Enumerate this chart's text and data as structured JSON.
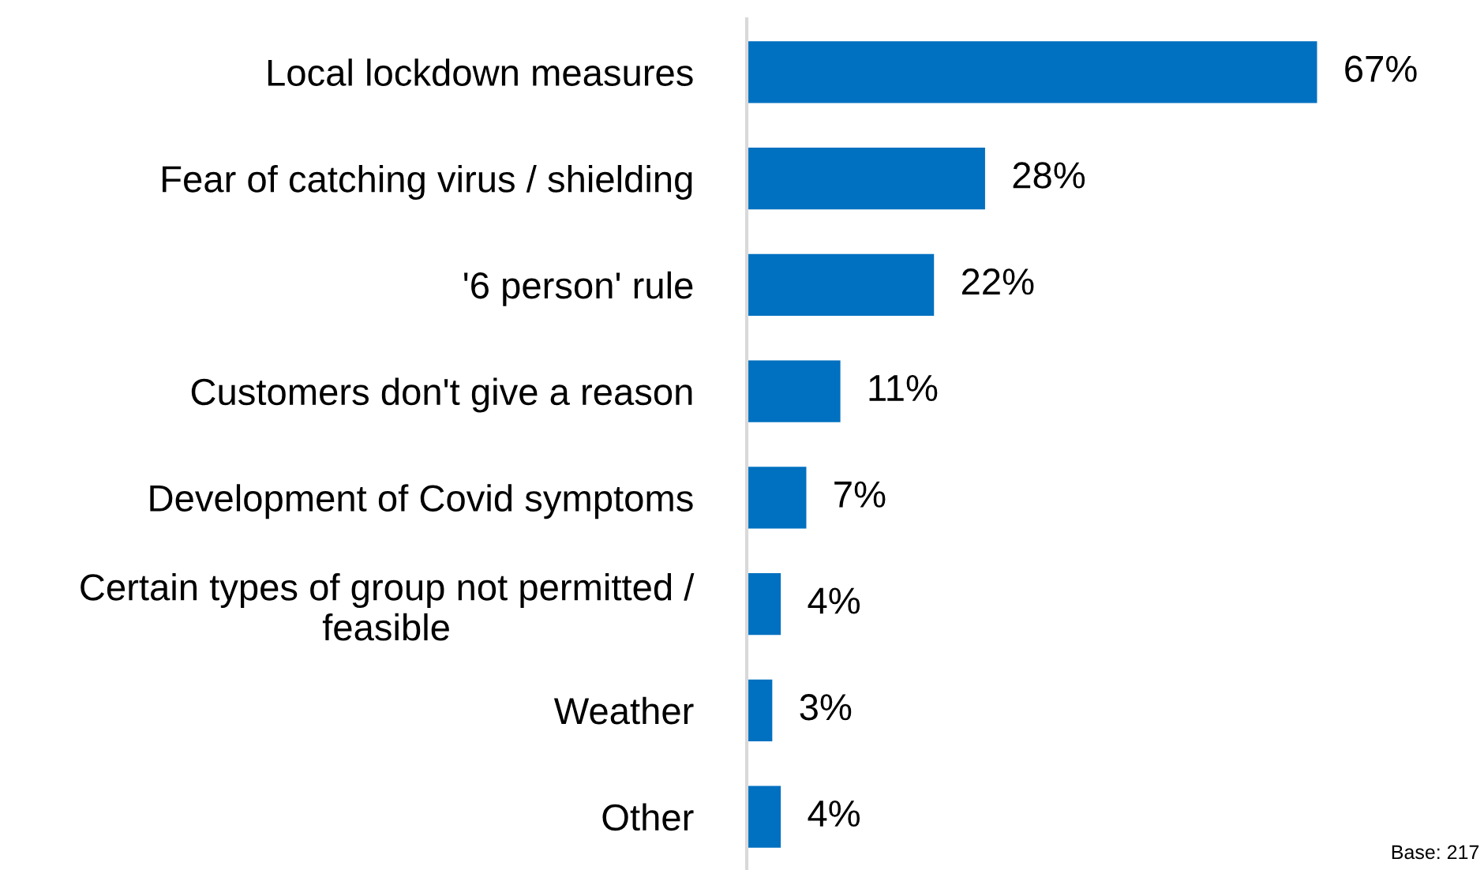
{
  "chart_data": {
    "type": "bar",
    "orientation": "horizontal",
    "categories": [
      "Local lockdown measures",
      "Fear of catching virus / shielding",
      "'6 person' rule",
      "Customers don't give a reason",
      "Development of Covid symptoms",
      "Certain types of group not permitted /\nfeasible",
      "Weather",
      "Other"
    ],
    "values": [
      67,
      28,
      22,
      11,
      7,
      4,
      3,
      4
    ],
    "value_labels": [
      "67%",
      "28%",
      "22%",
      "11%",
      "7%",
      "4%",
      "3%",
      "4%"
    ],
    "color": "#0070c0",
    "tick_labels": "y",
    "annotations": [
      "Base: 217"
    ]
  }
}
